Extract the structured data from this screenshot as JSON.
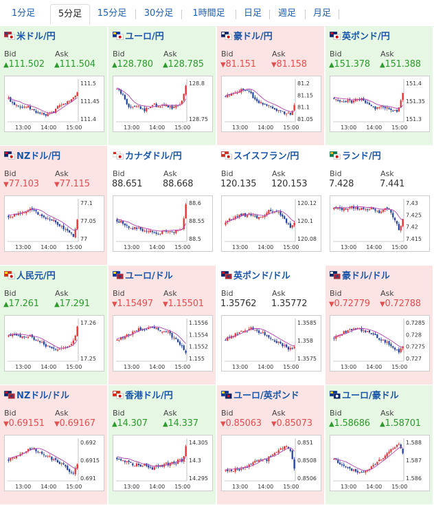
{
  "tabs": [
    "1分足",
    "5分足",
    "15分足",
    "30分足",
    "1時間足",
    "日足",
    "週足",
    "月足"
  ],
  "active_tab": 1,
  "labels": {
    "bid": "Bid",
    "ask": "Ask"
  },
  "time_ticks": [
    "13:00",
    "14:00",
    "15:00"
  ],
  "colors": {
    "up_candle": "#e03030",
    "down_candle": "#2040a0",
    "ma_line": "#b040b0",
    "up_bg": "#e6f7e3",
    "down_bg": "#fde4e4",
    "up_text": "#2e9a2e",
    "down_text": "#e05050"
  },
  "pairs": [
    {
      "name": "米ドル/円",
      "dir": "up",
      "bid": "111.502",
      "ask": "111.504",
      "y_ticks": [
        "111.5",
        "111.45",
        "111.4"
      ],
      "flag": "us-jp",
      "series": [
        0.55,
        0.45,
        0.4,
        0.38,
        0.32,
        0.35,
        0.3,
        0.25,
        0.2,
        0.18,
        0.12,
        0.1,
        0.15,
        0.2,
        0.3,
        0.35,
        0.4,
        0.45,
        0.5,
        0.6,
        0.7
      ]
    },
    {
      "name": "ユーロ/円",
      "dir": "up",
      "bid": "128.780",
      "ask": "128.785",
      "y_ticks": [
        "128.8",
        "128.75"
      ],
      "flag": "eu-jp",
      "series": [
        0.8,
        0.7,
        0.6,
        0.4,
        0.3,
        0.35,
        0.4,
        0.3,
        0.25,
        0.3,
        0.35,
        0.4,
        0.3,
        0.35,
        0.38,
        0.35,
        0.3,
        0.35,
        0.4,
        0.5,
        0.9
      ]
    },
    {
      "name": "豪ドル/円",
      "dir": "down",
      "bid": "81.151",
      "ask": "81.158",
      "y_ticks": [
        "81.2",
        "81.15",
        "81.1",
        "81.05"
      ],
      "flag": "au-jp",
      "series": [
        0.6,
        0.65,
        0.7,
        0.72,
        0.75,
        0.8,
        0.78,
        0.75,
        0.6,
        0.5,
        0.45,
        0.42,
        0.4,
        0.35,
        0.3,
        0.25,
        0.2,
        0.15,
        0.2,
        0.1,
        0.35
      ]
    },
    {
      "name": "英ポンド/円",
      "dir": "up",
      "bid": "151.378",
      "ask": "151.388",
      "y_ticks": [
        "151.4",
        "151.35",
        "151.3"
      ],
      "flag": "gb-jp",
      "series": [
        0.55,
        0.52,
        0.5,
        0.48,
        0.5,
        0.45,
        0.55,
        0.5,
        0.52,
        0.45,
        0.4,
        0.35,
        0.3,
        0.35,
        0.3,
        0.32,
        0.28,
        0.25,
        0.2,
        0.3,
        0.7
      ]
    },
    {
      "name": "NZドル/円",
      "dir": "down",
      "bid": "77.103",
      "ask": "77.115",
      "y_ticks": [
        "77.1",
        "77.05",
        "77"
      ],
      "flag": "nz-jp",
      "series": [
        0.6,
        0.62,
        0.65,
        0.7,
        0.72,
        0.75,
        0.78,
        0.8,
        0.7,
        0.65,
        0.6,
        0.5,
        0.55,
        0.48,
        0.4,
        0.35,
        0.3,
        0.2,
        0.15,
        0.1,
        0.55
      ]
    },
    {
      "name": "カナダドル/円",
      "dir": "neutral",
      "bid": "88.651",
      "ask": "88.668",
      "y_ticks": [
        "88.6",
        "88.55",
        "88.5"
      ],
      "flag": "ca-jp",
      "series": [
        0.5,
        0.45,
        0.4,
        0.35,
        0.3,
        0.28,
        0.3,
        0.25,
        0.2,
        0.22,
        0.18,
        0.2,
        0.15,
        0.2,
        0.25,
        0.2,
        0.18,
        0.22,
        0.25,
        0.3,
        0.9
      ]
    },
    {
      "name": "スイスフラン/円",
      "dir": "neutral",
      "bid": "120.135",
      "ask": "120.153",
      "y_ticks": [
        "120.12",
        "120.1",
        "120.08"
      ],
      "flag": "ch-jp",
      "series": [
        0.4,
        0.5,
        0.55,
        0.6,
        0.62,
        0.65,
        0.6,
        0.65,
        0.62,
        0.55,
        0.58,
        0.6,
        0.7,
        0.75,
        0.7,
        0.72,
        0.65,
        0.55,
        0.4,
        0.3,
        0.45
      ]
    },
    {
      "name": "ランド/円",
      "dir": "neutral",
      "bid": "7.428",
      "ask": "7.441",
      "y_ticks": [
        "7.43",
        "7.425",
        "7.42",
        "7.415"
      ],
      "flag": "za-jp",
      "series": [
        0.8,
        0.8,
        0.78,
        0.8,
        0.82,
        0.85,
        0.8,
        0.8,
        0.82,
        0.8,
        0.78,
        0.8,
        0.75,
        0.7,
        0.78,
        0.8,
        0.75,
        0.6,
        0.5,
        0.2,
        0.5
      ]
    },
    {
      "name": "人民元/円",
      "dir": "up",
      "bid": "17.261",
      "ask": "17.291",
      "y_ticks": [
        "17.26",
        "17.25"
      ],
      "flag": "cn-jp",
      "series": [
        0.6,
        0.62,
        0.65,
        0.6,
        0.58,
        0.55,
        0.6,
        0.55,
        0.5,
        0.45,
        0.4,
        0.35,
        0.3,
        0.25,
        0.2,
        0.25,
        0.3,
        0.35,
        0.3,
        0.5,
        0.85
      ]
    },
    {
      "name": "ユーロ/ドル",
      "dir": "down",
      "bid": "1.15497",
      "ask": "1.15501",
      "y_ticks": [
        "1.1556",
        "1.1554",
        "1.1552",
        "1.155"
      ],
      "flag": "eu-us",
      "series": [
        0.5,
        0.55,
        0.6,
        0.62,
        0.68,
        0.72,
        0.75,
        0.8,
        0.78,
        0.82,
        0.85,
        0.8,
        0.75,
        0.7,
        0.72,
        0.68,
        0.6,
        0.5,
        0.4,
        0.3,
        0.2
      ]
    },
    {
      "name": "英ポンド/ドル",
      "dir": "neutral",
      "bid": "1.35762",
      "ask": "1.35772",
      "y_ticks": [
        "1.3585",
        "1.358",
        "1.3575"
      ],
      "flag": "gb-us",
      "series": [
        0.5,
        0.55,
        0.6,
        0.65,
        0.7,
        0.72,
        0.75,
        0.8,
        0.78,
        0.75,
        0.7,
        0.68,
        0.6,
        0.55,
        0.5,
        0.45,
        0.4,
        0.35,
        0.3,
        0.25,
        0.3
      ]
    },
    {
      "name": "豪ドル/ドル",
      "dir": "down",
      "bid": "0.72779",
      "ask": "0.72788",
      "y_ticks": [
        "0.7285",
        "0.728",
        "0.7275",
        "0.727"
      ],
      "flag": "au-us",
      "series": [
        0.55,
        0.6,
        0.65,
        0.7,
        0.72,
        0.75,
        0.8,
        0.78,
        0.75,
        0.7,
        0.72,
        0.68,
        0.6,
        0.55,
        0.5,
        0.45,
        0.4,
        0.3,
        0.25,
        0.2,
        0.35
      ]
    },
    {
      "name": "NZドル/ドル",
      "dir": "down",
      "bid": "0.69151",
      "ask": "0.69167",
      "y_ticks": [
        "0.692",
        "0.6915",
        "0.691"
      ],
      "flag": "nz-us",
      "series": [
        0.5,
        0.55,
        0.6,
        0.65,
        0.7,
        0.72,
        0.78,
        0.8,
        0.75,
        0.7,
        0.65,
        0.6,
        0.55,
        0.5,
        0.45,
        0.4,
        0.35,
        0.25,
        0.2,
        0.15,
        0.35
      ]
    },
    {
      "name": "香港ドル/円",
      "dir": "up",
      "bid": "14.307",
      "ask": "14.337",
      "y_ticks": [
        "14.305",
        "14.3",
        "14.295"
      ],
      "flag": "hk-jp",
      "series": [
        0.55,
        0.5,
        0.45,
        0.5,
        0.4,
        0.35,
        0.4,
        0.3,
        0.35,
        0.3,
        0.25,
        0.3,
        0.35,
        0.3,
        0.4,
        0.35,
        0.45,
        0.4,
        0.5,
        0.45,
        0.85
      ]
    },
    {
      "name": "ユーロ/英ポンド",
      "dir": "down",
      "bid": "0.85063",
      "ask": "0.85073",
      "y_ticks": [
        "0.851",
        "0.8508",
        "0.8506"
      ],
      "flag": "eu-gb",
      "series": [
        0.2,
        0.25,
        0.2,
        0.3,
        0.25,
        0.3,
        0.28,
        0.35,
        0.4,
        0.45,
        0.5,
        0.55,
        0.5,
        0.6,
        0.65,
        0.7,
        0.75,
        0.8,
        0.85,
        0.7,
        0.3
      ]
    },
    {
      "name": "ユーロ/豪ドル",
      "dir": "up",
      "bid": "1.58686",
      "ask": "1.58701",
      "y_ticks": [
        "1.588",
        "1.587",
        "1.586"
      ],
      "flag": "eu-au",
      "series": [
        0.5,
        0.45,
        0.4,
        0.35,
        0.3,
        0.25,
        0.2,
        0.18,
        0.15,
        0.2,
        0.25,
        0.35,
        0.4,
        0.45,
        0.55,
        0.6,
        0.7,
        0.75,
        0.85,
        0.9,
        0.65
      ]
    }
  ]
}
